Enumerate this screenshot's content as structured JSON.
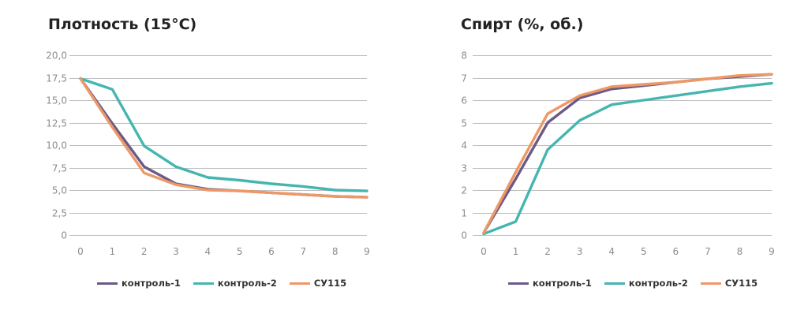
{
  "colors": {
    "kontrol_1": "#6b5a88",
    "kontrol_2": "#46b5b0",
    "cy115": "#ee9865",
    "grid": "#bfbfbf",
    "tick_text": "#8c8c8c"
  },
  "charts": [
    {
      "title": "Плотность (15°C)",
      "legend": [
        "контроль-1",
        "контроль-2",
        "СУ115"
      ]
    },
    {
      "title": "Спирт (%, об.)",
      "legend": [
        "контроль-1",
        "контроль-2",
        "СУ115"
      ]
    }
  ],
  "chart_data": [
    {
      "type": "line",
      "title": "Плотность (15°C)",
      "x": [
        0,
        1,
        2,
        3,
        4,
        5,
        6,
        7,
        8,
        9
      ],
      "ylim": [
        0,
        20
      ],
      "y_ticks": [
        "0",
        "2,5",
        "5,0",
        "7,5",
        "10,0",
        "12,5",
        "15,0",
        "17,5",
        "20,0"
      ],
      "grid": true,
      "legend_position": "bottom",
      "series": [
        {
          "name": "контроль-1",
          "color": "#6b5a88",
          "values": [
            17.4,
            12.4,
            7.6,
            5.7,
            5.1,
            4.9,
            4.7,
            4.5,
            4.3,
            4.2
          ]
        },
        {
          "name": "контроль-2",
          "color": "#46b5b0",
          "values": [
            17.4,
            16.2,
            9.9,
            7.6,
            6.4,
            6.1,
            5.7,
            5.4,
            5.0,
            4.9
          ]
        },
        {
          "name": "СУ115",
          "color": "#ee9865",
          "values": [
            17.4,
            12.0,
            6.9,
            5.6,
            5.0,
            4.9,
            4.7,
            4.5,
            4.3,
            4.2
          ]
        }
      ]
    },
    {
      "type": "line",
      "title": "Спирт (%, об.)",
      "x": [
        0,
        1,
        2,
        3,
        4,
        5,
        6,
        7,
        8,
        9
      ],
      "ylim": [
        0,
        8
      ],
      "y_ticks": [
        "0",
        "1",
        "2",
        "3",
        "4",
        "5",
        "6",
        "7",
        "8"
      ],
      "grid": true,
      "legend_position": "bottom",
      "series": [
        {
          "name": "контроль-1",
          "color": "#6b5a88",
          "values": [
            0.1,
            2.5,
            5.0,
            6.1,
            6.5,
            6.65,
            6.8,
            6.95,
            7.05,
            7.15
          ]
        },
        {
          "name": "контроль-2",
          "color": "#46b5b0",
          "values": [
            0.05,
            0.6,
            3.8,
            5.1,
            5.8,
            6.0,
            6.2,
            6.4,
            6.6,
            6.75
          ]
        },
        {
          "name": "СУ115",
          "color": "#ee9865",
          "values": [
            0.1,
            2.8,
            5.4,
            6.2,
            6.6,
            6.7,
            6.8,
            6.95,
            7.1,
            7.15
          ]
        }
      ]
    }
  ]
}
